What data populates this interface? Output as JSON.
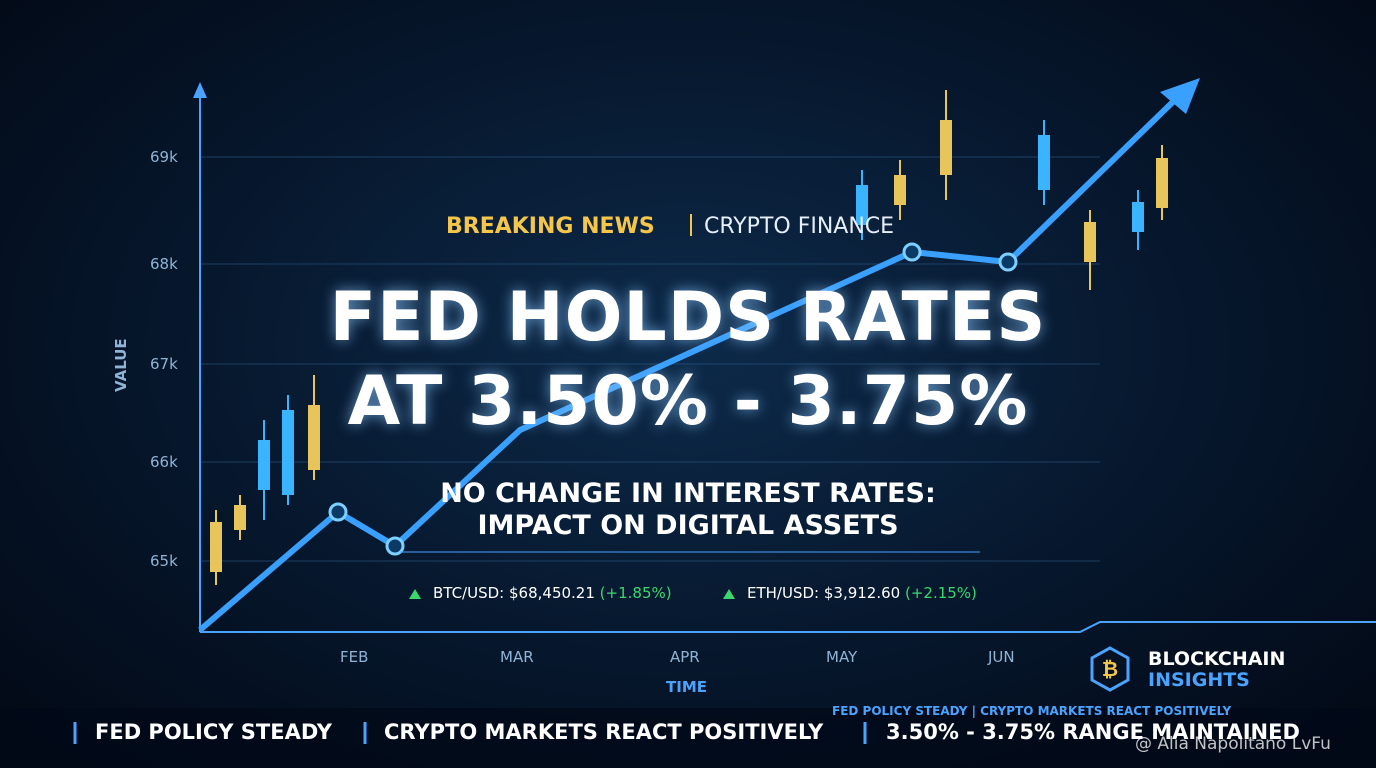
{
  "header": {
    "breaking": "BREAKING NEWS",
    "section": "CRYPTO FINANCE"
  },
  "headline": [
    "FED HOLDS RATES",
    "AT 3.50% - 3.75%"
  ],
  "subheadline": [
    "NO CHANGE IN INTEREST RATES:",
    "IMPACT ON DIGITAL ASSETS"
  ],
  "tickers": [
    {
      "pair": "BTC/USD:",
      "price": "$68,450.21",
      "change": "(+1.85%)"
    },
    {
      "pair": "ETH/USD:",
      "price": "$3,912.60",
      "change": "(+2.15%)"
    }
  ],
  "axis": {
    "y_title": "VALUE",
    "y_labels": [
      "69k",
      "68k",
      "67k",
      "66k",
      "65k"
    ],
    "x_title": "TIME",
    "x_labels": [
      "FEB",
      "MAR",
      "APR",
      "MAY",
      "JUN"
    ]
  },
  "brand": {
    "line1": "BLOCKCHAIN",
    "line2": "INSIGHTS",
    "tagline": "FED POLICY STEADY | CRYPTO MARKETS REACT POSITIVELY"
  },
  "ticker_bar": [
    "FED POLICY STEADY",
    "CRYPTO MARKETS REACT POSITIVELY",
    "3.50% - 3.75% RANGE MAINTAINED"
  ],
  "watermark": "@ Alia Napolitano LvFu"
}
